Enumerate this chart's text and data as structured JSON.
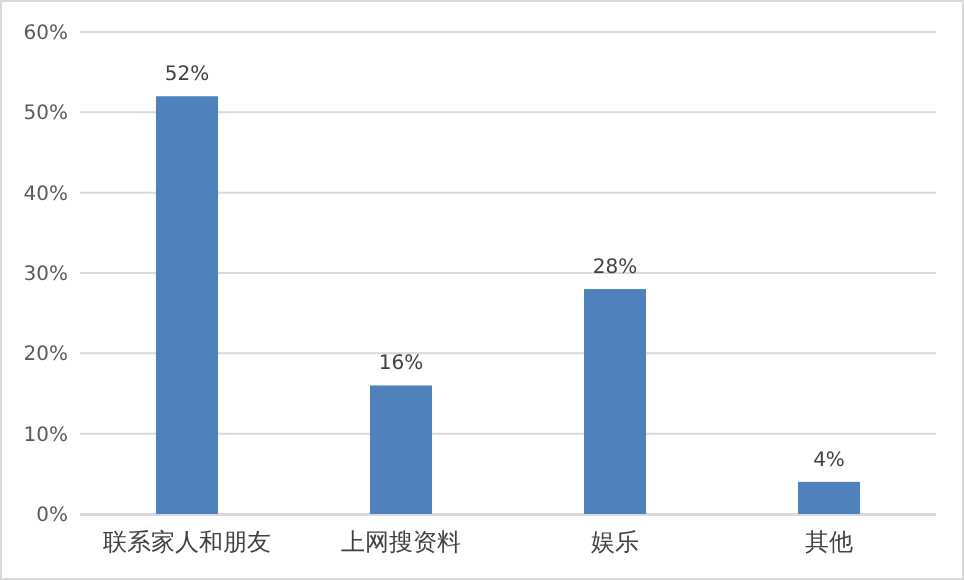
{
  "chart_data": {
    "type": "bar",
    "categories": [
      "联系家人和朋友",
      "上网搜资料",
      "娱乐",
      "其他"
    ],
    "values": [
      52,
      16,
      28,
      4
    ],
    "color": "#4f81bd",
    "value_labels": [
      "52%",
      "16%",
      "28%",
      "4%"
    ],
    "ylim": [
      0,
      60
    ],
    "yticks": [
      {
        "value": 0,
        "label": "0%"
      },
      {
        "value": 10,
        "label": "10%"
      },
      {
        "value": 20,
        "label": "20%"
      },
      {
        "value": 30,
        "label": "30%"
      },
      {
        "value": 40,
        "label": "40%"
      },
      {
        "value": 50,
        "label": "50%"
      },
      {
        "value": 60,
        "label": "60%"
      }
    ],
    "grid": "y"
  }
}
